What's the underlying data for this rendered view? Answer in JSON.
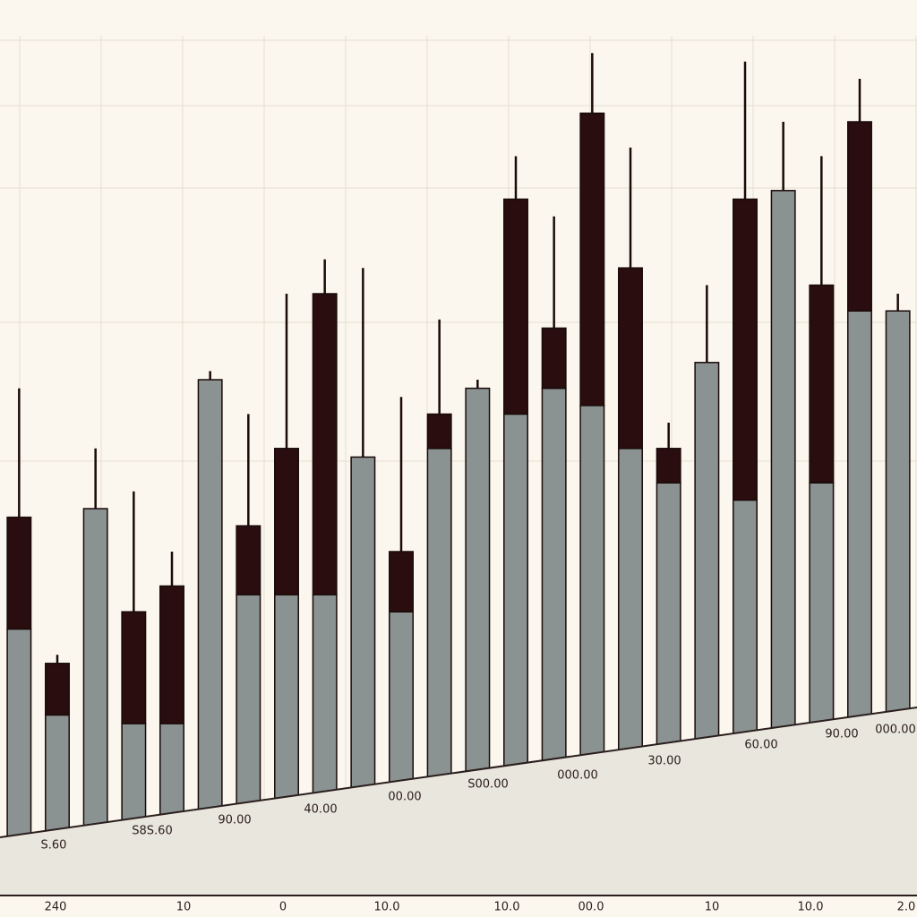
{
  "chart_data": {
    "type": "bar",
    "stacked": true,
    "grid": true,
    "ylim": [
      0,
      100
    ],
    "series": [
      {
        "color": "#8a9391",
        "values": [
          31,
          21,
          45,
          20,
          20,
          60,
          35,
          35,
          35,
          51,
          33,
          52,
          59,
          56,
          59,
          57,
          52,
          48,
          62,
          46,
          82,
          48,
          68,
          68
        ]
      },
      {
        "color": "#2a0d0e",
        "values": [
          13,
          6,
          0,
          13,
          16,
          0,
          8,
          17,
          35,
          0,
          7,
          4,
          0,
          25,
          7,
          34,
          21,
          4,
          0,
          35,
          0,
          23,
          22,
          0
        ]
      }
    ],
    "high": [
      59,
      28,
      52,
      47,
      40,
      61,
      56,
      70,
      74,
      73,
      58,
      67,
      60,
      86,
      79,
      98,
      87,
      55,
      71,
      97,
      90,
      86,
      95,
      70
    ],
    "annotations": [
      "S.60",
      "S8S.60",
      "90.00",
      "40.00",
      "00.00",
      "S00.00",
      "000.00",
      "30.00",
      "60.00",
      "90.00",
      "000.00"
    ],
    "x_labels": [
      "240",
      "10",
      "0",
      "10.0",
      "10.0",
      "00.0",
      "10",
      "10.0",
      "2.0"
    ]
  }
}
